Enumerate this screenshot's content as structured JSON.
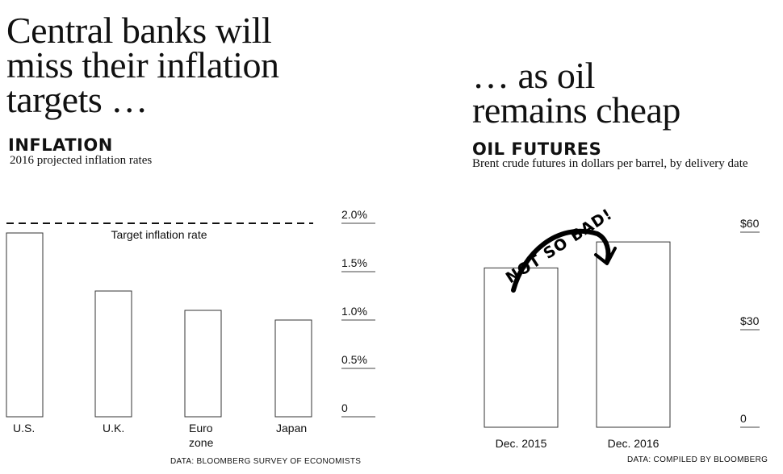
{
  "left": {
    "headline": "Central banks will\nmiss their inflation\ntargets …",
    "chart_title": "INFLATION",
    "subtitle": "2016 projected inflation rates",
    "source": "DATA: BLOOMBERG SURVEY OF ECONOMISTS"
  },
  "right": {
    "headline": "… as oil\nremains cheap",
    "chart_title": "OIL FUTURES",
    "subtitle": "Brent crude futures in dollars per barrel, by delivery date",
    "source": "DATA: COMPILED BY BLOOMBERG",
    "annotation": "NOT SO BAD!"
  },
  "colors": {
    "bar_stroke": "#333333",
    "gridline": "#444444",
    "background": "#ffffff"
  },
  "chart_data": [
    {
      "type": "bar",
      "title": "INFLATION",
      "subtitle": "2016 projected inflation rates",
      "categories": [
        "U.S.",
        "U.K.",
        "Euro\nzone",
        "Japan"
      ],
      "values": [
        1.9,
        1.3,
        1.1,
        1.0
      ],
      "ylim": [
        0,
        2.0
      ],
      "yticks": [
        0,
        0.5,
        1.0,
        1.5,
        2.0
      ],
      "ytick_labels": [
        "0",
        "0.5%",
        "1.0%",
        "1.5%",
        "2.0%"
      ],
      "reference_line": {
        "value": 2.0,
        "label": "Target inflation rate",
        "style": "dashed"
      },
      "grid": false,
      "legend": "none"
    },
    {
      "type": "bar",
      "title": "OIL FUTURES",
      "subtitle": "Brent crude futures in dollars per barrel, by delivery date",
      "categories": [
        "Dec. 2015",
        "Dec. 2016"
      ],
      "values": [
        49,
        57
      ],
      "ylim": [
        0,
        60
      ],
      "yticks": [
        0,
        30,
        60
      ],
      "ytick_labels": [
        "0",
        "$30",
        "$60"
      ],
      "grid": false,
      "legend": "none"
    }
  ]
}
